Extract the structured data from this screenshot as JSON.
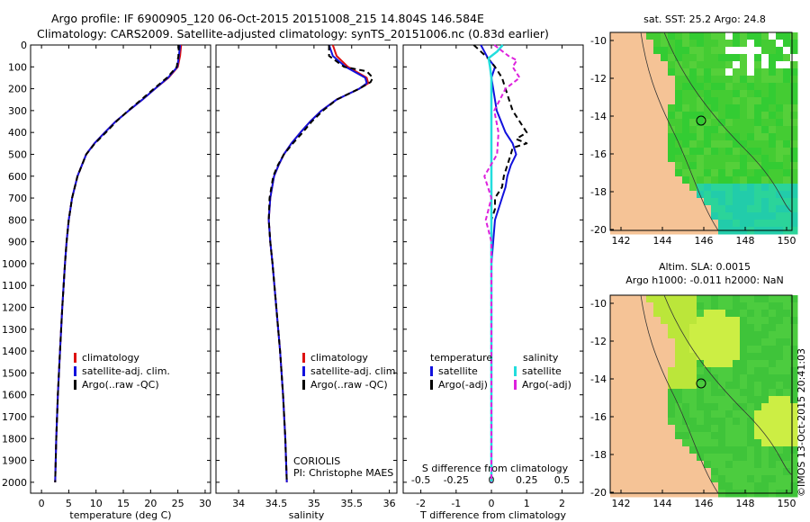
{
  "header": {
    "line1": "Argo profile: IF 6900905_120 06-Oct-2015 20151008_215 14.804S 146.584E",
    "line2": "Climatology: CARS2009. Satellite-adjusted climatology: synTS_20151006.nc (0.83d earlier)"
  },
  "credits": {
    "coriolis": "CORIOLIS",
    "pi": "PI: Christophe MAES",
    "imos": "©IMOS 13-Oct-2015 20:41:03"
  },
  "colors": {
    "climatology": "#dd1111",
    "satellite": "#1111dd",
    "argo": "#000000",
    "sal_satellite": "#22dddd",
    "sal_argo": "#dd22dd",
    "land": "#f5c396",
    "ocean_green": "#33cc33",
    "ocean_light": "#ccee44",
    "ocean_teal": "#22ccaa"
  },
  "legend_temp": {
    "items": [
      "climatology",
      "satellite-adj. clim.",
      "Argo(..raw -QC)"
    ]
  },
  "legend_sal": {
    "items": [
      "climatology",
      "satellite-adj. clim.",
      "Argo(..raw -QC)"
    ]
  },
  "legend_diff": {
    "temp_head": "temperature",
    "sal_head": "salinity",
    "temp_items": [
      "satellite",
      "Argo(-adj)"
    ],
    "sal_items": [
      "satellite",
      "Argo(-adj)"
    ]
  },
  "map_sst": {
    "title": "sat. SST: 25.2 Argo: 24.8",
    "yticks": [
      "-10",
      "-12",
      "-14",
      "-16",
      "-18",
      "-20"
    ],
    "xticks": [
      "142",
      "144",
      "146",
      "148",
      "150"
    ]
  },
  "map_sla": {
    "title1": "Altim. SLA: 0.0015",
    "title2": "Argo h1000: -0.011 h2000: NaN",
    "yticks": [
      "-10",
      "-12",
      "-14",
      "-16",
      "-18",
      "-20"
    ],
    "xticks": [
      "142",
      "144",
      "146",
      "148",
      "150"
    ]
  },
  "chart_data": [
    {
      "type": "line",
      "panel": "temperature",
      "xlabel": "temperature (deg C)",
      "ylabel": "",
      "xlim": [
        -2,
        31
      ],
      "ylim": [
        2050,
        0
      ],
      "xticks": [
        0,
        5,
        10,
        15,
        20,
        25,
        30
      ],
      "yticks": [
        0,
        100,
        200,
        300,
        400,
        500,
        600,
        700,
        800,
        900,
        1000,
        1100,
        1200,
        1300,
        1400,
        1500,
        1600,
        1700,
        1800,
        1900,
        2000
      ],
      "series": [
        {
          "name": "climatology",
          "pressure": [
            0,
            50,
            100,
            150,
            200,
            250,
            300,
            350,
            400,
            450,
            500,
            600,
            700,
            800,
            900,
            1000,
            1200,
            1400,
            1600,
            1800,
            2000
          ],
          "values": [
            25.6,
            25.4,
            25.0,
            23.3,
            20.8,
            18.5,
            16.0,
            13.6,
            11.6,
            9.7,
            8.2,
            6.6,
            5.6,
            5.0,
            4.6,
            4.3,
            3.8,
            3.4,
            3.0,
            2.7,
            2.5
          ]
        },
        {
          "name": "satellite-adj. clim.",
          "pressure": [
            0,
            50,
            100,
            150,
            200,
            250,
            300,
            350,
            400,
            450,
            500,
            600,
            700,
            800,
            900,
            1000,
            1200,
            1400,
            1600,
            1800,
            2000
          ],
          "values": [
            25.4,
            25.2,
            24.9,
            23.2,
            20.8,
            18.5,
            16.0,
            13.6,
            11.6,
            9.7,
            8.2,
            6.6,
            5.6,
            5.0,
            4.6,
            4.3,
            3.8,
            3.4,
            3.0,
            2.7,
            2.5
          ]
        },
        {
          "name": "Argo(..raw -QC)",
          "pressure": [
            0,
            50,
            100,
            150,
            200,
            250,
            300,
            350,
            400,
            450,
            500,
            600,
            700,
            800,
            900,
            1000,
            1200,
            1400,
            1600,
            1800,
            2000
          ],
          "values": [
            25.2,
            25.1,
            24.8,
            23.0,
            20.6,
            18.3,
            15.9,
            13.7,
            11.8,
            9.8,
            8.2,
            6.6,
            5.6,
            5.0,
            4.6,
            4.3,
            3.8,
            3.4,
            3.0,
            2.7,
            2.5
          ]
        }
      ]
    },
    {
      "type": "line",
      "panel": "salinity",
      "xlabel": "salinity",
      "ylabel": "",
      "xlim": [
        33.7,
        36.1
      ],
      "ylim": [
        2050,
        0
      ],
      "xticks": [
        34,
        34.5,
        35,
        35.5,
        36
      ],
      "series": [
        {
          "name": "climatology",
          "pressure": [
            0,
            50,
            100,
            150,
            175,
            200,
            250,
            300,
            350,
            400,
            450,
            500,
            550,
            600,
            700,
            800,
            900,
            1000,
            1200,
            1400,
            1600,
            1800,
            2000
          ],
          "values": [
            35.25,
            35.3,
            35.45,
            35.7,
            35.72,
            35.6,
            35.3,
            35.1,
            34.95,
            34.82,
            34.7,
            34.6,
            34.53,
            34.47,
            34.42,
            34.4,
            34.42,
            34.45,
            34.5,
            34.55,
            34.59,
            34.62,
            34.64
          ]
        },
        {
          "name": "satellite-adj. clim.",
          "pressure": [
            0,
            50,
            100,
            150,
            175,
            200,
            250,
            300,
            350,
            400,
            450,
            500,
            550,
            600,
            700,
            800,
            900,
            1000,
            1200,
            1400,
            1600,
            1800,
            2000
          ],
          "values": [
            35.2,
            35.25,
            35.42,
            35.68,
            35.7,
            35.6,
            35.3,
            35.1,
            34.95,
            34.82,
            34.7,
            34.6,
            34.53,
            34.47,
            34.42,
            34.4,
            34.42,
            34.45,
            34.5,
            34.55,
            34.59,
            34.62,
            34.64
          ]
        },
        {
          "name": "Argo(..raw -QC)",
          "pressure": [
            0,
            50,
            100,
            120,
            150,
            170,
            200,
            250,
            300,
            350,
            400,
            450,
            500,
            550,
            600,
            700,
            800,
            900,
            1000,
            1200,
            1400,
            1600,
            1800,
            2000
          ],
          "values": [
            35.2,
            35.2,
            35.4,
            35.7,
            35.78,
            35.75,
            35.6,
            35.3,
            35.12,
            34.97,
            34.85,
            34.72,
            34.6,
            34.52,
            34.46,
            34.41,
            34.4,
            34.42,
            34.45,
            34.5,
            34.55,
            34.59,
            34.62,
            34.64
          ]
        }
      ]
    },
    {
      "type": "line",
      "panel": "difference",
      "xlabel": "T difference from climatology",
      "xlabel2": "S difference from climatology",
      "xlim": [
        -2.5,
        2.6
      ],
      "ylim": [
        2050,
        0
      ],
      "xticks": [
        -2,
        -1,
        0,
        1,
        2
      ],
      "xticks2": [
        "-0.5",
        "-0.25",
        "0",
        "0.25",
        "0.5"
      ],
      "series": [
        {
          "name": "temperature satellite",
          "pressure": [
            0,
            30,
            60,
            100,
            150,
            200,
            300,
            400,
            450,
            500,
            550,
            600,
            650,
            700,
            800,
            900,
            1000,
            1200,
            1500,
            2000
          ],
          "values": [
            -0.3,
            -0.2,
            -0.1,
            0.1,
            0.0,
            0.05,
            0.15,
            0.4,
            0.6,
            0.7,
            0.55,
            0.45,
            0.4,
            0.3,
            0.1,
            0.05,
            0.0,
            0.0,
            0.0,
            0.0
          ]
        },
        {
          "name": "temperature Argo(-adj)",
          "pressure": [
            0,
            30,
            60,
            100,
            150,
            200,
            250,
            300,
            350,
            400,
            430,
            450,
            470,
            500,
            550,
            600,
            650,
            700,
            750,
            800,
            900,
            1000,
            1200,
            1500,
            2000
          ],
          "values": [
            -0.5,
            -0.3,
            -0.1,
            0.1,
            0.3,
            0.4,
            0.5,
            0.6,
            0.8,
            1.0,
            0.7,
            1.0,
            0.6,
            0.55,
            0.45,
            0.35,
            0.3,
            0.1,
            0.1,
            0.0,
            0.0,
            0.0,
            0.0,
            0.0,
            0.0
          ]
        },
        {
          "name": "salinity satellite",
          "pressure": [
            0,
            30,
            60,
            100,
            150,
            200,
            300,
            400,
            600,
            800,
            1000,
            1500,
            2000
          ],
          "values": [
            0.08,
            0.04,
            -0.02,
            -0.01,
            0.0,
            0.0,
            0.0,
            0.0,
            0.0,
            0.0,
            0.0,
            0.0,
            0.0
          ]
        },
        {
          "name": "salinity Argo(-adj)",
          "pressure": [
            0,
            50,
            70,
            100,
            150,
            200,
            300,
            400,
            500,
            600,
            700,
            800,
            900,
            1000,
            1500,
            2000
          ],
          "values": [
            0.02,
            0.12,
            0.18,
            0.15,
            0.2,
            0.1,
            0.02,
            0.05,
            0.04,
            -0.05,
            0.0,
            -0.04,
            0.0,
            0.0,
            0.0,
            0.0
          ]
        }
      ]
    }
  ]
}
